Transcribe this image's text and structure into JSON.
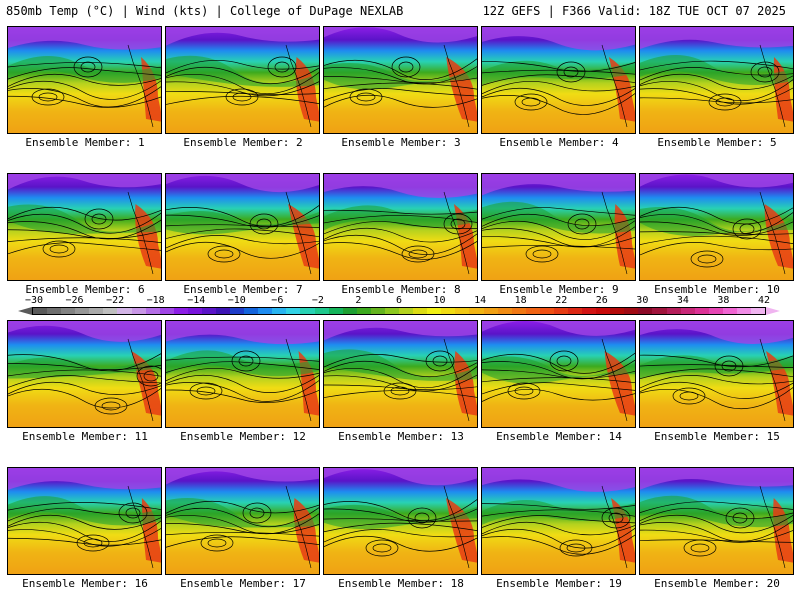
{
  "header": {
    "left": "850mb Temp (°C) | Wind (kts) | College of DuPage NEXLAB",
    "right": "12Z GEFS | F366 Valid: 18Z TUE OCT 07 2025"
  },
  "panels": [
    {
      "label": "Ensemble Member: 1"
    },
    {
      "label": "Ensemble Member: 2"
    },
    {
      "label": "Ensemble Member: 3"
    },
    {
      "label": "Ensemble Member: 4"
    },
    {
      "label": "Ensemble Member: 5"
    },
    {
      "label": "Ensemble Member: 6"
    },
    {
      "label": "Ensemble Member: 7"
    },
    {
      "label": "Ensemble Member: 8"
    },
    {
      "label": "Ensemble Member: 9"
    },
    {
      "label": "Ensemble Member: 10"
    },
    {
      "label": "Ensemble Member: 11"
    },
    {
      "label": "Ensemble Member: 12"
    },
    {
      "label": "Ensemble Member: 13"
    },
    {
      "label": "Ensemble Member: 14"
    },
    {
      "label": "Ensemble Member: 15"
    },
    {
      "label": "Ensemble Member: 16"
    },
    {
      "label": "Ensemble Member: 17"
    },
    {
      "label": "Ensemble Member: 18"
    },
    {
      "label": "Ensemble Member: 19"
    },
    {
      "label": "Ensemble Member: 20"
    }
  ],
  "colorbar": {
    "tick_labels": [
      "−30",
      "−26",
      "−22",
      "−18",
      "−14",
      "−10",
      "−6",
      "−2",
      "2",
      "6",
      "10",
      "14",
      "18",
      "22",
      "26",
      "30",
      "34",
      "38",
      "42"
    ],
    "colors": [
      "#5a5a5a",
      "#6e6e6e",
      "#828282",
      "#969696",
      "#aaaaaa",
      "#bebebe",
      "#d2b4e6",
      "#c896e6",
      "#b46ee6",
      "#a046e6",
      "#8c1ee6",
      "#7814dc",
      "#5a14c8",
      "#3c14b4",
      "#1e3cc8",
      "#1464dc",
      "#1e8cf0",
      "#28b4f0",
      "#32d2e6",
      "#28d2b4",
      "#1ec88c",
      "#14b45a",
      "#1ea032",
      "#3caa1e",
      "#64b41e",
      "#8cc81e",
      "#b4d21e",
      "#dcdc14",
      "#f0f014",
      "#f0dc14",
      "#f0c814",
      "#f0b414",
      "#f0a014",
      "#f08c14",
      "#f07814",
      "#f06414",
      "#f05014",
      "#e63c14",
      "#dc2814",
      "#d21414",
      "#c80a0a",
      "#b40a0a",
      "#a00a14",
      "#8c0a28",
      "#a0143c",
      "#b41e5a",
      "#c82878",
      "#dc3296",
      "#e646b4",
      "#f064d2",
      "#f08ce6",
      "#f0b4f0"
    ]
  }
}
